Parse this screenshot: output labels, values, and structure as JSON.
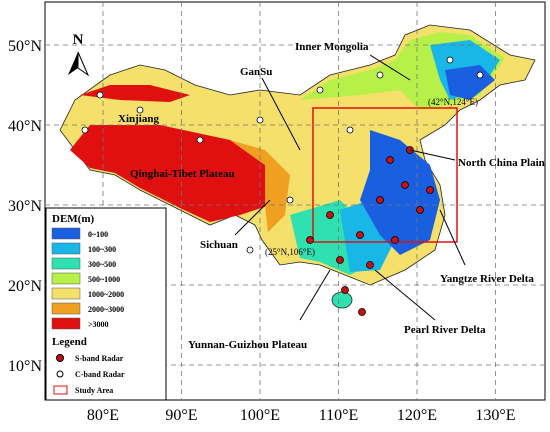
{
  "map": {
    "north": "N",
    "lon_ticks": [
      {
        "value": 80,
        "label": "80°E"
      },
      {
        "value": 90,
        "label": "90°E"
      },
      {
        "value": 100,
        "label": "100°E"
      },
      {
        "value": 110,
        "label": "110°E"
      },
      {
        "value": 120,
        "label": "120°E"
      },
      {
        "value": 130,
        "label": "130°E"
      }
    ],
    "lat_ticks": [
      {
        "value": 10,
        "label": "10°N"
      },
      {
        "value": 20,
        "label": "20°N"
      },
      {
        "value": 30,
        "label": "30°N"
      },
      {
        "value": 40,
        "label": "40°N"
      },
      {
        "value": 50,
        "label": "50°N"
      }
    ],
    "regions": [
      "Inner Mongolia",
      "GanSu",
      "Xinjiang",
      "Qinghai-Tibet Plateau",
      "North China Plain",
      "Sichuan",
      "Yangtze River Delta",
      "Yunnan-Guizhou Plateau",
      "Pearl River Delta"
    ],
    "corners": [
      "(42°N,124°E)",
      "(25°N,106°E)"
    ],
    "dem_legend": {
      "title": "DEM(m)",
      "entries": [
        {
          "label": "0~100",
          "color": "#1a5fe0"
        },
        {
          "label": "100~300",
          "color": "#19b6e8"
        },
        {
          "label": "300~500",
          "color": "#2fe0b0"
        },
        {
          "label": "500~1000",
          "color": "#b8f04a"
        },
        {
          "label": "1000~2000",
          "color": "#f4e06a"
        },
        {
          "label": "2000~3000",
          "color": "#f0a020"
        },
        {
          "label": ">3000",
          "color": "#e01010"
        }
      ]
    },
    "legend": {
      "title": "Legend",
      "s_band": "S-band Radar",
      "c_band": "C-band Radar",
      "study_area": "Study Area"
    }
  }
}
